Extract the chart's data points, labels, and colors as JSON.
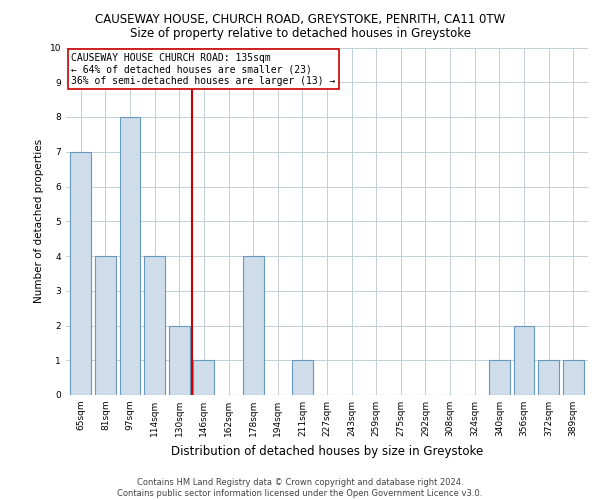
{
  "title1": "CAUSEWAY HOUSE, CHURCH ROAD, GREYSTOKE, PENRITH, CA11 0TW",
  "title2": "Size of property relative to detached houses in Greystoke",
  "xlabel": "Distribution of detached houses by size in Greystoke",
  "ylabel": "Number of detached properties",
  "categories": [
    "65sqm",
    "81sqm",
    "97sqm",
    "114sqm",
    "130sqm",
    "146sqm",
    "162sqm",
    "178sqm",
    "194sqm",
    "211sqm",
    "227sqm",
    "243sqm",
    "259sqm",
    "275sqm",
    "292sqm",
    "308sqm",
    "324sqm",
    "340sqm",
    "356sqm",
    "372sqm",
    "389sqm"
  ],
  "values": [
    7,
    4,
    8,
    4,
    2,
    1,
    0,
    4,
    0,
    1,
    0,
    0,
    0,
    0,
    0,
    0,
    0,
    1,
    2,
    1,
    1
  ],
  "bar_color": "#cfdcea",
  "bar_edge_color": "#6699bb",
  "vline_x": 4.5,
  "vline_color": "#cc0000",
  "annotation_text": "CAUSEWAY HOUSE CHURCH ROAD: 135sqm\n← 64% of detached houses are smaller (23)\n36% of semi-detached houses are larger (13) →",
  "annotation_box_color": "#ffffff",
  "annotation_box_edge": "#cc0000",
  "ylim": [
    0,
    10
  ],
  "yticks": [
    0,
    1,
    2,
    3,
    4,
    5,
    6,
    7,
    8,
    9,
    10
  ],
  "footer1": "Contains HM Land Registry data © Crown copyright and database right 2024.",
  "footer2": "Contains public sector information licensed under the Open Government Licence v3.0.",
  "bg_color": "#ffffff",
  "grid_color": "#c0cfd8",
  "title1_fontsize": 8.5,
  "title2_fontsize": 8.5,
  "xlabel_fontsize": 8.5,
  "ylabel_fontsize": 7.5,
  "tick_fontsize": 6.5,
  "ann_fontsize": 7.0,
  "footer_fontsize": 6.0
}
